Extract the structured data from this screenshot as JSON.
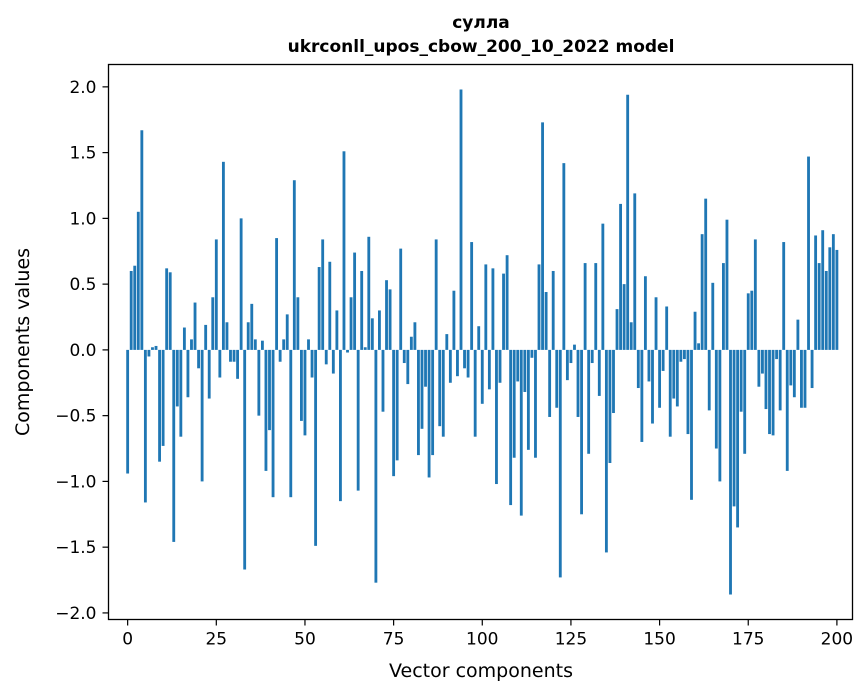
{
  "chart_data": {
    "type": "bar",
    "title": "сулла",
    "subtitle": "ukrconll_upos_cbow_200_10_2022 model",
    "xlabel": "Vector components",
    "ylabel": "Components values",
    "xlim": [
      -5.4,
      204.4
    ],
    "ylim": [
      -2.05,
      2.17
    ],
    "xticks": [
      0,
      25,
      50,
      75,
      100,
      125,
      150,
      175,
      200
    ],
    "yticks": [
      2.0,
      1.5,
      1.0,
      0.5,
      0.0,
      -0.5,
      -1.0,
      -1.5,
      -2.0
    ],
    "xtick_labels": [
      "0",
      "25",
      "50",
      "75",
      "100",
      "125",
      "150",
      "175",
      "200"
    ],
    "ytick_labels": [
      "2.0",
      "1.5",
      "1.0",
      "0.5",
      "0.0",
      "−0.5",
      "−1.0",
      "−1.5",
      "−2.0"
    ],
    "bar_color": "#1f77b4",
    "grid": false,
    "values": [
      -0.94,
      0.6,
      0.64,
      1.05,
      1.67,
      -1.16,
      -0.05,
      0.02,
      0.03,
      -0.85,
      -0.73,
      0.62,
      0.59,
      -1.46,
      -0.43,
      -0.66,
      0.17,
      -0.36,
      0.08,
      0.36,
      -0.14,
      -1.0,
      0.19,
      -0.37,
      0.4,
      0.84,
      -0.21,
      1.43,
      0.21,
      -0.09,
      -0.09,
      -0.22,
      1.0,
      -1.67,
      0.21,
      0.35,
      0.08,
      -0.5,
      0.07,
      -0.92,
      -0.61,
      -1.12,
      0.85,
      -0.09,
      0.08,
      0.27,
      -1.12,
      1.29,
      0.4,
      -0.54,
      -0.65,
      0.08,
      -0.21,
      -1.49,
      0.63,
      0.84,
      -0.11,
      0.67,
      -0.18,
      0.3,
      -1.15,
      1.51,
      -0.02,
      0.4,
      0.74,
      -1.07,
      0.6,
      0.02,
      0.86,
      0.24,
      -1.77,
      0.3,
      -0.47,
      0.53,
      0.46,
      -0.96,
      -0.84,
      0.77,
      -0.1,
      -0.26,
      0.1,
      0.21,
      -0.8,
      -0.6,
      -0.28,
      -0.97,
      -0.8,
      0.84,
      -0.58,
      -0.66,
      0.12,
      -0.25,
      0.45,
      -0.2,
      1.98,
      -0.14,
      -0.21,
      0.82,
      -0.66,
      0.18,
      -0.41,
      0.65,
      -0.3,
      0.62,
      -1.02,
      -0.25,
      0.58,
      0.72,
      -1.18,
      -0.82,
      -0.24,
      -1.26,
      -0.32,
      -0.76,
      -0.06,
      -0.82,
      0.65,
      1.73,
      0.44,
      -0.51,
      0.6,
      -0.44,
      -1.73,
      1.42,
      -0.23,
      -0.1,
      0.04,
      -0.51,
      -1.25,
      0.66,
      -0.79,
      -0.1,
      0.66,
      -0.35,
      0.96,
      -1.54,
      -0.86,
      -0.48,
      0.31,
      1.11,
      0.5,
      1.94,
      0.21,
      1.19,
      -0.29,
      -0.7,
      0.56,
      -0.24,
      -0.56,
      0.4,
      -0.44,
      -0.16,
      0.33,
      -0.66,
      -0.37,
      -0.43,
      -0.09,
      -0.07,
      -0.64,
      -1.14,
      0.29,
      0.05,
      0.88,
      1.15,
      -0.46,
      0.51,
      -0.75,
      -1.0,
      0.66,
      0.99,
      -1.86,
      -1.19,
      -1.35,
      -0.47,
      -0.79,
      0.43,
      0.45,
      0.84,
      -0.28,
      -0.18,
      -0.45,
      -0.64,
      -0.65,
      -0.07,
      -0.46,
      0.82,
      -0.92,
      -0.27,
      -0.36,
      0.23,
      -0.44,
      -0.44,
      1.47,
      -0.29,
      0.87,
      0.66,
      0.91,
      0.6,
      0.78,
      0.88,
      0.76
    ]
  }
}
